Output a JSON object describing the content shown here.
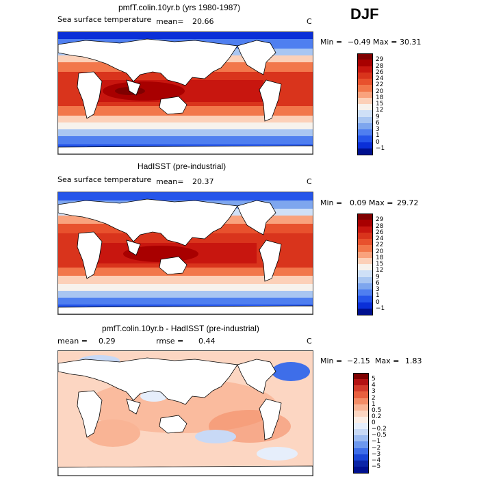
{
  "season": "DJF",
  "panels": [
    {
      "title": "pmfT.colin.10yr.b (yrs 1980-1987)",
      "field_label": "Sea surface temperature",
      "stat_label": "mean=",
      "stat_value": "20.66",
      "units": "C",
      "min_label": "Min =",
      "min_value": "−0.49",
      "max_label": "Max =",
      "max_value": "30.31",
      "legend_labels": [
        "29",
        "28",
        "26",
        "24",
        "22",
        "20",
        "18",
        "15",
        "12",
        "9",
        "6",
        "3",
        "1",
        "0",
        "−1"
      ]
    },
    {
      "title": "HadISST (pre-industrial)",
      "field_label": "Sea surface temperature",
      "stat_label": "mean=",
      "stat_value": "20.37",
      "units": "C",
      "min_label": "Min =",
      "min_value": "0.09",
      "max_label": "Max =",
      "max_value": "29.72",
      "legend_labels": [
        "29",
        "28",
        "26",
        "24",
        "22",
        "20",
        "18",
        "15",
        "12",
        "9",
        "6",
        "3",
        "1",
        "0",
        "−1"
      ]
    },
    {
      "title": "pmfT.colin.10yr.b - HadISST (pre-industrial)",
      "mean_label": "mean =",
      "mean_value": "0.29",
      "rmse_label": "rmse =",
      "rmse_value": "0.44",
      "units": "C",
      "min_label": "Min =",
      "min_value": "−2.15",
      "max_label": "Max =",
      "max_value": "1.83",
      "legend_labels": [
        "5",
        "4",
        "3",
        "2",
        "1",
        "0.5",
        "0.2",
        "0",
        "−0.2",
        "−0.5",
        "−1",
        "−2",
        "−3",
        "−4",
        "−5"
      ]
    }
  ],
  "colors": {
    "sst_scale": [
      "#7f0000",
      "#a80000",
      "#c8160f",
      "#d9341c",
      "#e8512d",
      "#f2774b",
      "#f9a27d",
      "#fcd0b8",
      "#f7f2ec",
      "#cfe0f7",
      "#a9c6f2",
      "#7ea6ee",
      "#4f7ff0",
      "#2555ea",
      "#0a2fd8",
      "#00108f"
    ],
    "diff_scale": [
      "#7f0000",
      "#b31212",
      "#d23a2a",
      "#e8603f",
      "#f38c66",
      "#f9b495",
      "#fcd6c2",
      "#fbeee6",
      "#e6eefb",
      "#c8d9f6",
      "#9dbcf2",
      "#6d98ee",
      "#3e6ee9",
      "#1a46d6",
      "#0b25a6",
      "#00108f"
    ],
    "land": "#ffffff",
    "coast": "#000000"
  }
}
